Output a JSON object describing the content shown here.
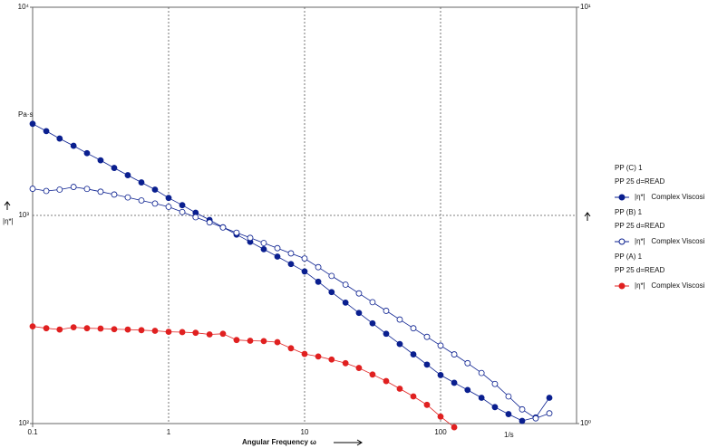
{
  "chart_data": {
    "type": "line",
    "x_label": "Angular Frequency ω",
    "y_label": "|η*|",
    "y_unit": "Pa·s",
    "x_unit": "1/s",
    "log_x": true,
    "log_y": true,
    "log_y2": true,
    "grid": true,
    "xlim": [
      0.1,
      1000
    ],
    "ylim": [
      100,
      10000
    ],
    "y2lim": [
      1,
      10
    ],
    "xticks": [
      0.1,
      1,
      10,
      100
    ],
    "yticks": [
      {
        "value": 100,
        "label": "10²"
      },
      {
        "value": 1000,
        "label": "10³"
      },
      {
        "value": 10000,
        "label": "10⁴"
      }
    ],
    "y2ticks": [
      {
        "value": 1,
        "label": "10⁰"
      },
      {
        "value": 10,
        "label": "10¹"
      }
    ],
    "x": [
      0.1,
      0.126,
      0.158,
      0.2,
      0.251,
      0.316,
      0.398,
      0.501,
      0.631,
      0.794,
      1,
      1.26,
      1.58,
      2,
      2.51,
      3.16,
      3.98,
      5.01,
      6.31,
      7.94,
      10,
      12.6,
      15.8,
      20,
      25.1,
      31.6,
      39.8,
      50.1,
      63.1,
      79.4,
      100,
      126,
      158,
      200,
      251,
      316,
      398,
      501,
      631
    ],
    "series": [
      {
        "sample": "PP (C) 1",
        "setup": "PP 25 d=READ",
        "name": "|η*|   Complex Viscosi",
        "color": "#0a1f8f",
        "marker": "filled",
        "values": [
          2754,
          2540,
          2340,
          2160,
          1990,
          1840,
          1690,
          1560,
          1440,
          1330,
          1213,
          1120,
          1030,
          951,
          877,
          809,
          746,
          688,
          634,
          584,
          538,
          480,
          428,
          381,
          340,
          303,
          270,
          241,
          215,
          192,
          171,
          157,
          145,
          133,
          120,
          111,
          103,
          107,
          133
        ]
      },
      {
        "sample": "PP (B) 1",
        "setup": "PP 25 d=READ",
        "name": "|η*|   Complex Viscosi",
        "color": "#0a1f8f",
        "marker": "open",
        "values": [
          1343,
          1310,
          1330,
          1370,
          1340,
          1300,
          1260,
          1220,
          1180,
          1140,
          1100,
          1038,
          980,
          926,
          875,
          826,
          780,
          737,
          696,
          657,
          621,
          564,
          512,
          465,
          422,
          383,
          348,
          316,
          287,
          261,
          237,
          215,
          195,
          175,
          155,
          135,
          117,
          106,
          112
        ]
      },
      {
        "sample": "PP (A) 1",
        "setup": "PP 25 d=READ",
        "name": "|η*|   Complex Viscosi",
        "color": "#e02020",
        "marker": "filled",
        "values": [
          293,
          287,
          283,
          290,
          287,
          286,
          284,
          283,
          281,
          279,
          276,
          275,
          273,
          268,
          270,
          252,
          250,
          249,
          246,
          230,
          216,
          210,
          203,
          195,
          185,
          172,
          160,
          147,
          135,
          123,
          108,
          96,
          null,
          null,
          null,
          null,
          null,
          null,
          null
        ]
      }
    ]
  }
}
